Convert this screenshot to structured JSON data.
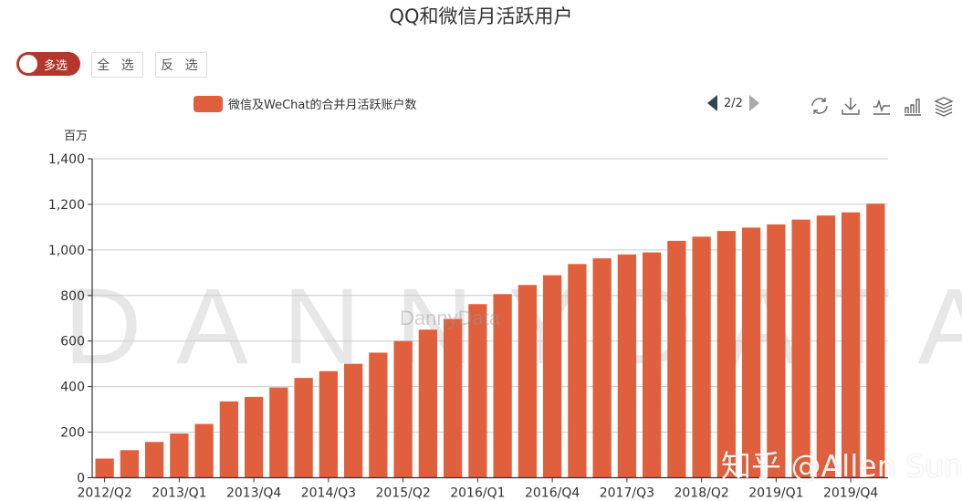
{
  "header": {
    "title": "QQ和微信月活跃用户"
  },
  "controls": {
    "multi_select_label": "多选",
    "select_all_label": "全 选",
    "invert_label": "反 选"
  },
  "legend": {
    "series_label": "微信及WeChat的合并月活跃账户数",
    "page": "2/2"
  },
  "toolbox": [
    "restore-icon",
    "download-icon",
    "line-chart-icon",
    "bar-chart-icon",
    "stack-icon"
  ],
  "watermark": {
    "big": "DANNYDATA",
    "small": "DannyData",
    "credit": "知乎 @Allen Sun"
  },
  "colors": {
    "bar": "#e05f3c",
    "toggle": "#b5372b",
    "axis": "#333333",
    "grid": "#cccccc"
  },
  "chart_data": {
    "type": "bar",
    "title": "QQ和微信月活跃用户",
    "xlabel": "",
    "ylabel": "百万",
    "ylim": [
      0,
      1400
    ],
    "yticks": [
      0,
      200,
      400,
      600,
      800,
      1000,
      1200,
      1400
    ],
    "ytick_labels": [
      "0",
      "200",
      "400",
      "600",
      "800",
      "1,000",
      "1,200",
      "1,400"
    ],
    "grid": true,
    "legend_position": "top",
    "categories": [
      "2012/Q2",
      "2012/Q3",
      "2012/Q4",
      "2013/Q1",
      "2013/Q2",
      "2013/Q3",
      "2013/Q4",
      "2014/Q1",
      "2014/Q2",
      "2014/Q3",
      "2014/Q4",
      "2015/Q1",
      "2015/Q2",
      "2015/Q3",
      "2015/Q4",
      "2016/Q1",
      "2016/Q2",
      "2016/Q3",
      "2016/Q4",
      "2017/Q1",
      "2017/Q2",
      "2017/Q3",
      "2017/Q4",
      "2018/Q1",
      "2018/Q2",
      "2018/Q3",
      "2018/Q4",
      "2019/Q1",
      "2019/Q2",
      "2019/Q3",
      "2019/Q4",
      "2020/Q1"
    ],
    "visible_x_labels": [
      "2012/Q2",
      "2013/Q1",
      "2013/Q4",
      "2014/Q3",
      "2015/Q2",
      "2016/Q1",
      "2016/Q4",
      "2017/Q3",
      "2018/Q2",
      "2019/Q1",
      "2019/Q4"
    ],
    "series": [
      {
        "name": "微信及WeChat的合并月活跃账户数",
        "values": [
          84,
          121,
          157,
          194,
          236,
          335,
          355,
          396,
          438,
          468,
          500,
          549,
          600,
          650,
          697,
          762,
          806,
          846,
          889,
          938,
          963,
          980,
          989,
          1040,
          1058,
          1083,
          1098,
          1112,
          1133,
          1151,
          1165,
          1203
        ]
      }
    ]
  }
}
